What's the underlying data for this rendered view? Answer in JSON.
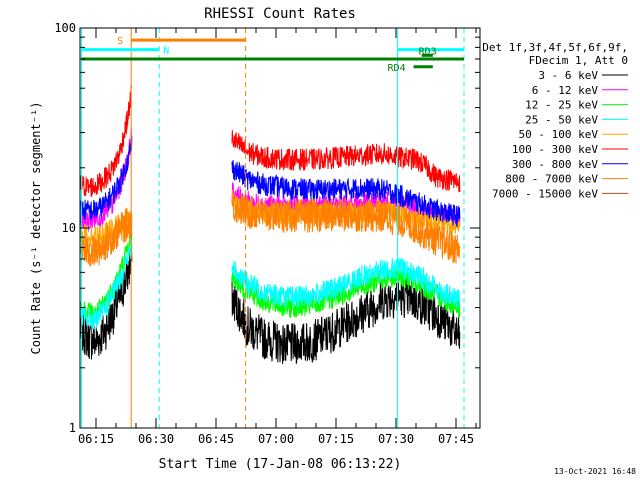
{
  "chart_data": {
    "type": "line",
    "title": "RHESSI Count Rates",
    "xlabel": "Start Time (17-Jan-08 06:13:22)",
    "ylabel": "Count Rate (s⁻¹ detector segment⁻¹)",
    "y_scale": "log",
    "ylim": [
      1,
      100
    ],
    "xlim": [
      "06:11",
      "07:51"
    ],
    "x_tick_labels": [
      "06:15",
      "06:30",
      "06:45",
      "07:00",
      "07:15",
      "07:30",
      "07:45"
    ],
    "y_tick_labels": [
      "1",
      "10",
      "100"
    ],
    "legend_header": [
      "Det 1f,3f,4f,5f,6f,9f,",
      "FDecim 1, Att 0"
    ],
    "series": [
      {
        "name": "3 - 6 keV",
        "color": "#000000",
        "segments": [
          [
            [
              0,
              3.1
            ],
            [
              2,
              2.8
            ],
            [
              4,
              2.7
            ],
            [
              6,
              3.0
            ],
            [
              8,
              3.6
            ],
            [
              10,
              4.5
            ],
            [
              12,
              6.0
            ],
            [
              13,
              7.0
            ]
          ],
          [
            [
              38,
              4.5
            ],
            [
              42,
              3.2
            ],
            [
              46,
              2.8
            ],
            [
              52,
              2.6
            ],
            [
              58,
              2.7
            ],
            [
              64,
              3.1
            ],
            [
              70,
              3.7
            ],
            [
              76,
              4.4
            ],
            [
              80,
              4.6
            ],
            [
              84,
              4.3
            ],
            [
              88,
              3.8
            ],
            [
              92,
              3.3
            ],
            [
              95,
              2.8
            ]
          ]
        ]
      },
      {
        "name": "6 - 12 keV",
        "color": "#ff00ff",
        "segments": [
          [
            [
              0,
              11.0
            ],
            [
              2,
              10.8
            ],
            [
              4,
              11.2
            ],
            [
              6,
              11.8
            ],
            [
              8,
              13.0
            ],
            [
              10,
              16.0
            ],
            [
              12,
              22.0
            ],
            [
              13,
              30.0
            ]
          ],
          [
            [
              38,
              15.0
            ],
            [
              42,
              13.5
            ],
            [
              46,
              13.0
            ],
            [
              52,
              12.8
            ],
            [
              58,
              12.8
            ],
            [
              64,
              13.0
            ],
            [
              70,
              13.3
            ],
            [
              76,
              13.5
            ],
            [
              80,
              13.2
            ],
            [
              84,
              12.6
            ],
            [
              88,
              12.0
            ],
            [
              92,
              11.6
            ],
            [
              95,
              11.3
            ]
          ]
        ]
      },
      {
        "name": "12 - 25 keV",
        "color": "#00ff00",
        "segments": [
          [
            [
              0,
              4.0
            ],
            [
              2,
              3.8
            ],
            [
              4,
              3.7
            ],
            [
              6,
              4.2
            ],
            [
              8,
              4.9
            ],
            [
              10,
              6.0
            ],
            [
              12,
              8.0
            ],
            [
              13,
              9.0
            ]
          ],
          [
            [
              38,
              5.8
            ],
            [
              42,
              4.8
            ],
            [
              46,
              4.3
            ],
            [
              52,
              4.0
            ],
            [
              58,
              4.1
            ],
            [
              64,
              4.5
            ],
            [
              70,
              5.1
            ],
            [
              76,
              5.6
            ],
            [
              80,
              5.7
            ],
            [
              84,
              5.4
            ],
            [
              88,
              4.8
            ],
            [
              92,
              4.3
            ],
            [
              95,
              4.0
            ]
          ]
        ]
      },
      {
        "name": "25 - 50 keV",
        "color": "#00ffff",
        "segments": [
          [
            [
              0,
              3.7
            ],
            [
              2,
              3.5
            ],
            [
              4,
              3.5
            ],
            [
              6,
              3.9
            ],
            [
              8,
              4.6
            ],
            [
              10,
              5.6
            ],
            [
              12,
              7.2
            ],
            [
              13,
              8.0
            ]
          ],
          [
            [
              38,
              6.3
            ],
            [
              42,
              5.3
            ],
            [
              46,
              4.8
            ],
            [
              52,
              4.5
            ],
            [
              58,
              4.6
            ],
            [
              64,
              5.0
            ],
            [
              70,
              5.7
            ],
            [
              76,
              6.2
            ],
            [
              80,
              6.3
            ],
            [
              84,
              5.9
            ],
            [
              88,
              5.2
            ],
            [
              92,
              4.6
            ],
            [
              95,
              4.3
            ]
          ]
        ]
      },
      {
        "name": "50 - 100 keV",
        "color": "#ffa500",
        "segments": [
          [
            [
              0,
              9.5
            ],
            [
              2,
              9.2
            ],
            [
              4,
              9.0
            ],
            [
              6,
              9.4
            ],
            [
              8,
              9.8
            ],
            [
              10,
              10.5
            ],
            [
              12,
              11.0
            ],
            [
              13,
              11.0
            ]
          ],
          [
            [
              38,
              14.0
            ],
            [
              42,
              12.5
            ],
            [
              46,
              12.0
            ],
            [
              52,
              11.8
            ],
            [
              58,
              11.8
            ],
            [
              64,
              11.9
            ],
            [
              70,
              12.0
            ],
            [
              76,
              12.0
            ],
            [
              80,
              11.8
            ],
            [
              84,
              11.3
            ],
            [
              88,
              10.8
            ],
            [
              92,
              10.4
            ],
            [
              95,
              10.1
            ]
          ]
        ]
      },
      {
        "name": "100 - 300 keV",
        "color": "#ff0000",
        "segments": [
          [
            [
              0,
              16.5
            ],
            [
              2,
              16.0
            ],
            [
              4,
              16.2
            ],
            [
              6,
              17.5
            ],
            [
              8,
              19.5
            ],
            [
              10,
              24.0
            ],
            [
              12,
              36.0
            ],
            [
              13,
              50.0
            ]
          ],
          [
            [
              38,
              28.0
            ],
            [
              42,
              24.0
            ],
            [
              46,
              22.5
            ],
            [
              52,
              22.0
            ],
            [
              58,
              22.0
            ],
            [
              64,
              22.5
            ],
            [
              70,
              23.0
            ],
            [
              76,
              23.5
            ],
            [
              80,
              22.5
            ],
            [
              84,
              22.0
            ],
            [
              87,
              20.0
            ],
            [
              89,
              18.0
            ],
            [
              92,
              17.5
            ],
            [
              95,
              17.0
            ]
          ]
        ]
      },
      {
        "name": "300 - 800 keV",
        "color": "#0000ff",
        "segments": [
          [
            [
              0,
              12.5
            ],
            [
              2,
              12.2
            ],
            [
              4,
              12.3
            ],
            [
              6,
              13.0
            ],
            [
              8,
              14.5
            ],
            [
              10,
              17.0
            ],
            [
              12,
              22.0
            ],
            [
              13,
              27.0
            ]
          ],
          [
            [
              38,
              20.0
            ],
            [
              42,
              17.5
            ],
            [
              46,
              16.5
            ],
            [
              52,
              15.8
            ],
            [
              58,
              15.5
            ],
            [
              64,
              15.6
            ],
            [
              70,
              15.8
            ],
            [
              76,
              15.5
            ],
            [
              80,
              14.5
            ],
            [
              84,
              13.5
            ],
            [
              88,
              12.5
            ],
            [
              92,
              11.8
            ],
            [
              95,
              11.4
            ]
          ]
        ]
      },
      {
        "name": "800 - 7000 keV",
        "color": "#ff7f00",
        "segments": [
          [
            [
              0,
              8.0
            ],
            [
              2,
              7.6
            ],
            [
              4,
              7.6
            ],
            [
              6,
              8.2
            ],
            [
              8,
              9.0
            ],
            [
              10,
              9.8
            ],
            [
              12,
              10.5
            ],
            [
              13,
              11.0
            ]
          ],
          [
            [
              38,
              13.0
            ],
            [
              42,
              12.0
            ],
            [
              46,
              11.6
            ],
            [
              52,
              11.5
            ],
            [
              58,
              11.5
            ],
            [
              64,
              11.6
            ],
            [
              70,
              11.6
            ],
            [
              76,
              11.4
            ],
            [
              80,
              11.0
            ],
            [
              84,
              10.0
            ],
            [
              88,
              9.0
            ],
            [
              92,
              8.2
            ],
            [
              95,
              7.8
            ]
          ]
        ]
      },
      {
        "name": "7000 - 15000 keV",
        "color": "#a0522d",
        "segments": []
      }
    ],
    "vertical_markers": [
      {
        "x": 12.8,
        "color": "#ff7f00",
        "style": "solid"
      },
      {
        "x": 19.8,
        "color": "#00ffff",
        "style": "dashed"
      },
      {
        "x": 41.4,
        "color": "#ff7f00",
        "style": "dashed"
      },
      {
        "x": 0.4,
        "color": "#00ffff",
        "style": "solid"
      },
      {
        "x": 79.4,
        "color": "#00ffff",
        "style": "solid"
      },
      {
        "x": 96.0,
        "color": "#00ffff",
        "style": "dashed"
      }
    ],
    "bars": [
      {
        "x0": 0.4,
        "x1": 96.0,
        "y": 70,
        "color": "#008000",
        "label": ""
      },
      {
        "x0": 0.4,
        "x1": 19.8,
        "y": 78,
        "color": "#00ffff",
        "label": "N"
      },
      {
        "x0": 12.8,
        "x1": 41.4,
        "y": 87,
        "color": "#ff7f00",
        "label": "S"
      },
      {
        "x0": 79.4,
        "x1": 96.0,
        "y": 78,
        "color": "#00ffff",
        "label": ""
      },
      {
        "x0": 85.4,
        "x1": 88.2,
        "y": 73,
        "color": "#008000",
        "label": "RD3"
      },
      {
        "x0": 83.4,
        "x1": 88.2,
        "y": 64,
        "color": "#008000",
        "label": "RD4"
      }
    ]
  },
  "footer_date": "13-Oct-2021 16:48"
}
